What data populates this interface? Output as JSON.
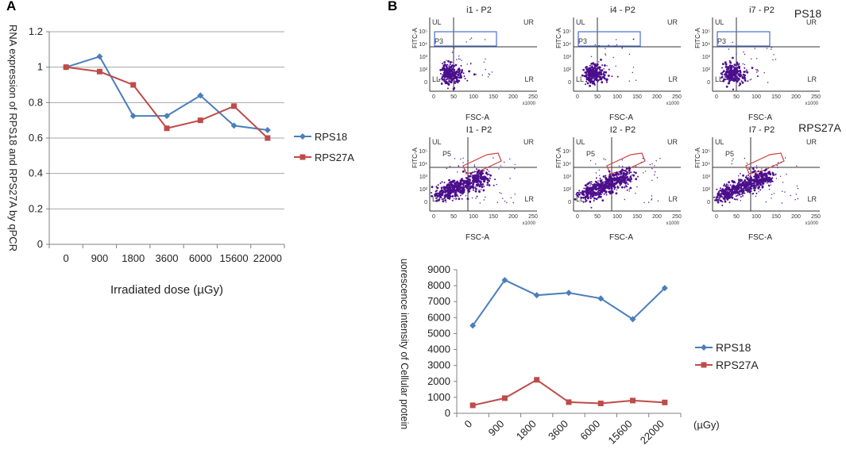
{
  "panels": {
    "a": "A",
    "b": "B"
  },
  "chart_data": [
    {
      "id": "qpcr",
      "type": "line",
      "title": "",
      "ylabel": "RNA expression of RPS18 and RPS27A by qPCR",
      "xlabel": "Irradiated dose (µGy)",
      "categories": [
        "0",
        "900",
        "1800",
        "3600",
        "6000",
        "15600",
        "22000"
      ],
      "ylim": [
        0,
        1.2
      ],
      "yticks": [
        "0",
        "0.2",
        "0.4",
        "0.6",
        "0.8",
        "1",
        "1.2"
      ],
      "grid": true,
      "legend": "right",
      "series": [
        {
          "name": "RPS18",
          "color": "#4a7ebb",
          "marker": "diamond",
          "values": [
            1.0,
            1.06,
            0.725,
            0.725,
            0.84,
            0.67,
            0.645
          ]
        },
        {
          "name": "RPS27A",
          "color": "#be4b48",
          "marker": "square",
          "values": [
            1.0,
            0.975,
            0.9,
            0.655,
            0.7,
            0.78,
            0.6
          ]
        }
      ]
    },
    {
      "id": "fluorescence",
      "type": "line",
      "title": "",
      "ylabel": "fluorescence intensity of Cellular protein",
      "xlabel": "",
      "unit": "(µGy)",
      "categories": [
        "0",
        "900",
        "1800",
        "3600",
        "6000",
        "15600",
        "22000"
      ],
      "ylim": [
        0,
        9000
      ],
      "yticks": [
        "0",
        "1000",
        "2000",
        "3000",
        "4000",
        "5000",
        "6000",
        "7000",
        "8000",
        "9000"
      ],
      "grid": false,
      "legend": "right",
      "series": [
        {
          "name": "RPS18",
          "color": "#4a7ebb",
          "marker": "diamond",
          "values": [
            5500,
            8350,
            7400,
            7550,
            7200,
            5900,
            7850
          ]
        },
        {
          "name": "RPS27A",
          "color": "#be4b48",
          "marker": "square",
          "values": [
            500,
            950,
            2100,
            700,
            620,
            800,
            680
          ]
        }
      ]
    },
    {
      "id": "flow",
      "type": "scatter",
      "row_labels": [
        "PS18",
        "RPS27A"
      ],
      "quadrants": {
        "ul": "UL",
        "ur": "UR",
        "ll": "LL",
        "lr": "LR"
      },
      "x_axis": {
        "label": "FSC-A",
        "ticks": [
          "0",
          "50",
          "100",
          "150",
          "200",
          "250"
        ],
        "unit": "x1000"
      },
      "y_axis": {
        "label": "FITC-A",
        "ticks": [
          "0",
          "10²",
          "10³",
          "10⁴",
          "10⁵"
        ]
      },
      "rows": [
        {
          "gate": "P3",
          "gate_shape": "rectangle",
          "gate_color": "#4a6fd0",
          "plots": [
            "i1 - P2",
            "i4 - P2",
            "i7 - P2"
          ]
        },
        {
          "gate": "P5",
          "gate_shape": "polygon",
          "gate_color": "#d04040",
          "plots": [
            "I1 - P2",
            "I2 - P2",
            "I7 - P2"
          ]
        }
      ]
    }
  ]
}
